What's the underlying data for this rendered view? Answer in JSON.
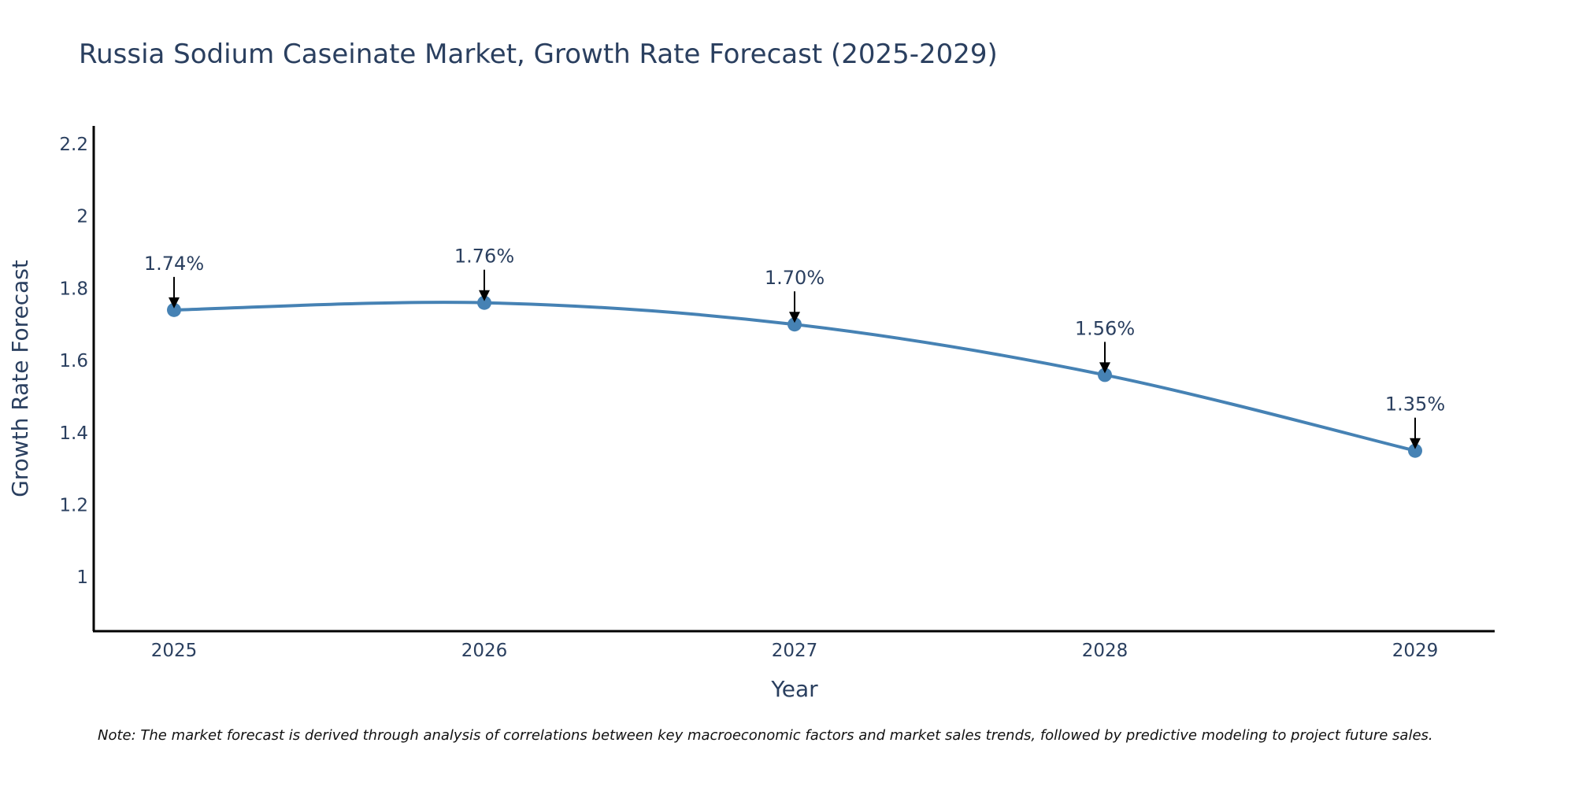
{
  "chart_data": {
    "type": "line",
    "title": "Russia Sodium Caseinate Market, Growth Rate Forecast (2025-2029)",
    "xlabel": "Year",
    "ylabel": "Growth Rate Forecast",
    "categories": [
      "2025",
      "2026",
      "2027",
      "2028",
      "2029"
    ],
    "values": [
      1.74,
      1.76,
      1.7,
      1.56,
      1.35
    ],
    "data_labels": [
      "1.74%",
      "1.76%",
      "1.70%",
      "1.56%",
      "1.35%"
    ],
    "ylim": [
      0.85,
      2.25
    ],
    "yticks": [
      1,
      1.2,
      1.4,
      1.6,
      1.8,
      2,
      2.2
    ],
    "ytick_labels": [
      "1",
      "1.2",
      "1.4",
      "1.6",
      "1.8",
      "2",
      "2.2"
    ],
    "line_shape": "smooth",
    "grid": false,
    "series_color": "#4682b4"
  },
  "note": "Note: The market forecast is derived through analysis of correlations between key macroeconomic factors and market sales trends, followed by predictive modeling to project future sales."
}
